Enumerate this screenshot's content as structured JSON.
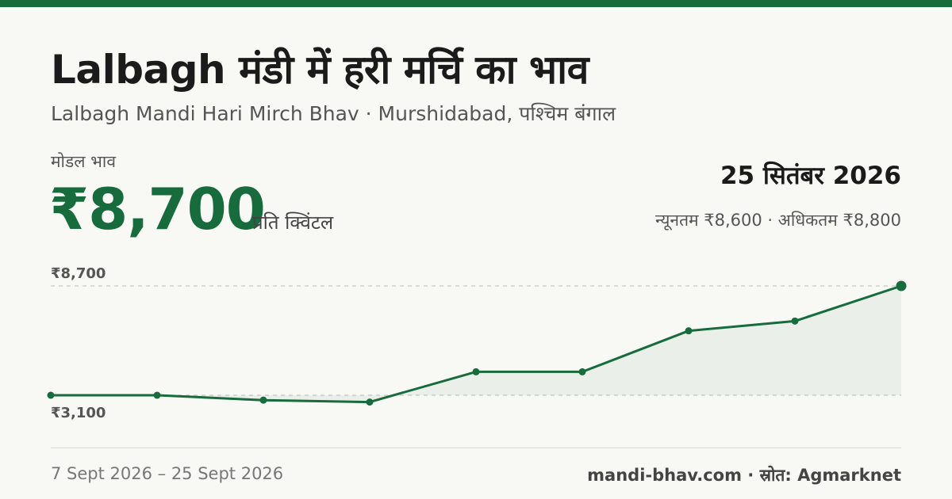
{
  "header": {
    "title": "Lalbagh मंडी में हरी मर्चि का भाव",
    "subtitle": "Lalbagh Mandi Hari Mirch Bhav · Murshidabad, पश्चिम बंगाल"
  },
  "price": {
    "label": "मोडल भाव",
    "value": "₹8,700",
    "unit": "प्रति क्विंटल"
  },
  "summary": {
    "date": "25 सितंबर 2026",
    "minmax": "न्यूनतम ₹8,600 · अधिकतम ₹8,800"
  },
  "footer": {
    "range": "7 Sept 2026 – 25 Sept 2026",
    "source": "mandi-bhav.com · स्रोत: Agmarknet"
  },
  "colors": {
    "accent": "#176b3c",
    "background": "#f8f8f4"
  },
  "chart_data": {
    "type": "line",
    "series": [
      {
        "values": [
          3100,
          3100,
          2850,
          2750,
          4300,
          4300,
          6400,
          6900,
          8700
        ]
      }
    ],
    "y_labels": [
      "₹8,700",
      "₹3,100"
    ],
    "y_ref_values": [
      8700,
      3100
    ],
    "grid": false,
    "legend": "none"
  }
}
